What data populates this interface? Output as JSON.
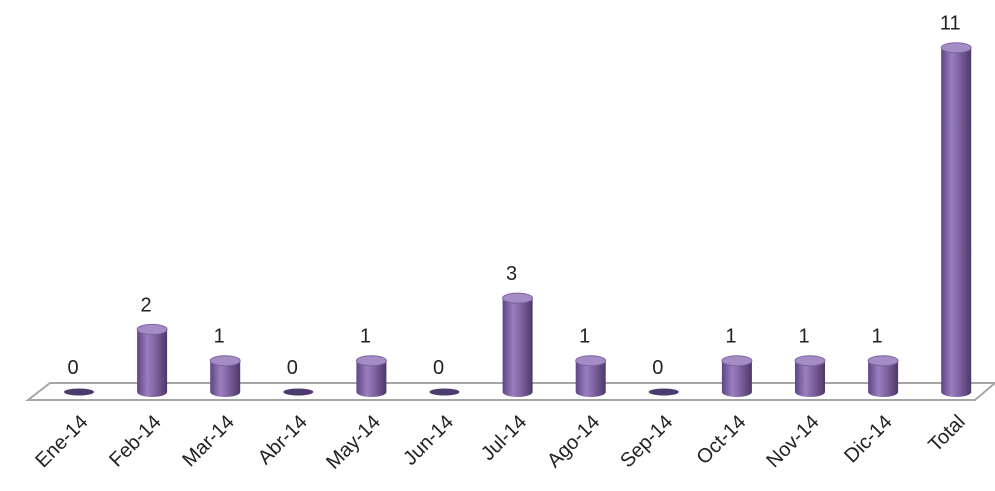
{
  "chart_data": {
    "type": "bar",
    "style": "3d-cylinder",
    "categories": [
      "Ene-14",
      "Feb-14",
      "Mar-14",
      "Abr-14",
      "May-14",
      "Jun-14",
      "Jul-14",
      "Ago-14",
      "Sep-14",
      "Oct-14",
      "Nov-14",
      "Dic-14",
      "Total"
    ],
    "values": [
      0,
      2,
      1,
      0,
      1,
      0,
      3,
      1,
      0,
      1,
      1,
      1,
      11
    ],
    "data_labels": [
      "0",
      "2",
      "1",
      "0",
      "1",
      "0",
      "3",
      "1",
      "0",
      "1",
      "1",
      "1",
      "11"
    ],
    "title": "",
    "xlabel": "",
    "ylabel": "",
    "ylim": [
      0,
      11
    ],
    "grid": false,
    "legend": "none",
    "colors": {
      "bar": "#8064a2",
      "bar_dark": "#4f3a6e",
      "bar_light": "#a48cc4",
      "floor": "#ffffff",
      "floor_edge": "#a6a6a6"
    }
  }
}
